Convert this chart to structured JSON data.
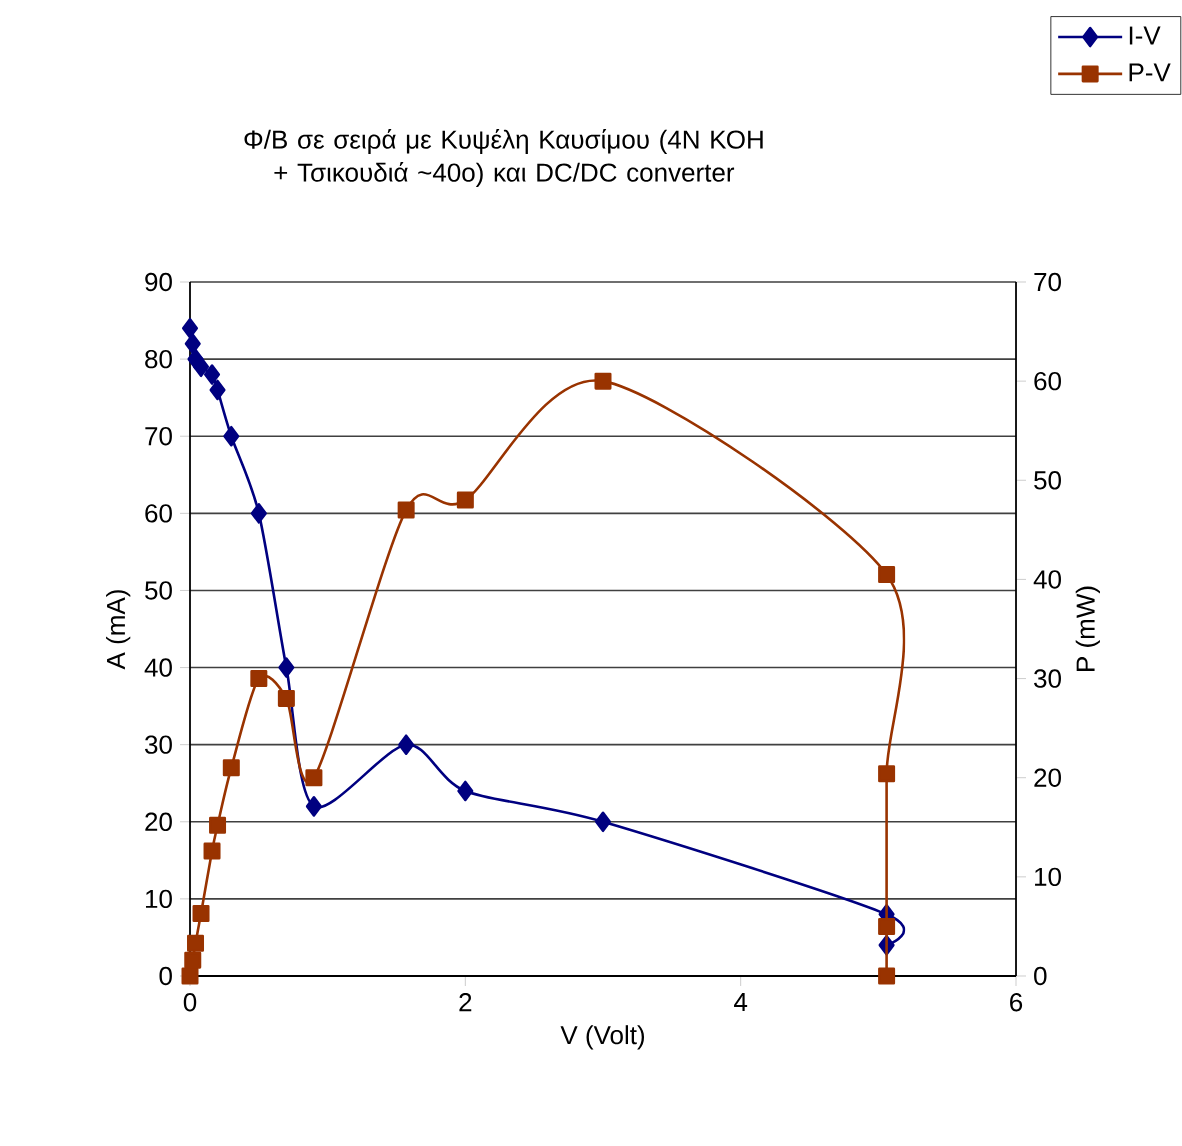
{
  "chart_data": {
    "type": "line",
    "title": "Φ/Β σε σειρά με Κυψέλη Καυσίμου (4Ν ΚΟΗ + Τσικουδιά ~40ο) και DC/DC converter",
    "xlabel": "V (Volt)",
    "ylabel": "A (mA)",
    "y2label": "P (mW)",
    "xlim": [
      0,
      6
    ],
    "xticks": [
      0,
      2,
      4,
      6
    ],
    "ylim": [
      0,
      90
    ],
    "yticks": [
      0,
      10,
      20,
      30,
      40,
      50,
      60,
      70,
      80,
      90
    ],
    "y2lim": [
      0,
      70
    ],
    "y2ticks": [
      0,
      10,
      20,
      30,
      40,
      50,
      60,
      70
    ],
    "grid": "y",
    "legend": "top right",
    "series": [
      {
        "name": "I-V",
        "color": "#000080",
        "marker": "diamond",
        "axis": "y",
        "x": [
          0,
          0.02,
          0.04,
          0.08,
          0.16,
          0.2,
          0.3,
          0.5,
          0.7,
          0.9,
          1.57,
          2,
          3,
          5.06,
          5.06
        ],
        "values": [
          84,
          82,
          80,
          79,
          78,
          76,
          70,
          60,
          40,
          22,
          30,
          24,
          20,
          8,
          4
        ]
      },
      {
        "name": "P-V",
        "color": "#993300",
        "marker": "square",
        "axis": "y2",
        "x": [
          0,
          0.02,
          0.04,
          0.08,
          0.16,
          0.2,
          0.3,
          0.5,
          0.7,
          0.9,
          1.57,
          2,
          3,
          5.06,
          5.06,
          5.06,
          5.06
        ],
        "values": [
          0,
          1.6,
          3.3,
          6.3,
          12.6,
          15.2,
          21,
          30,
          28,
          20,
          47,
          48,
          60,
          40.5,
          20.4,
          5,
          0
        ]
      }
    ]
  }
}
